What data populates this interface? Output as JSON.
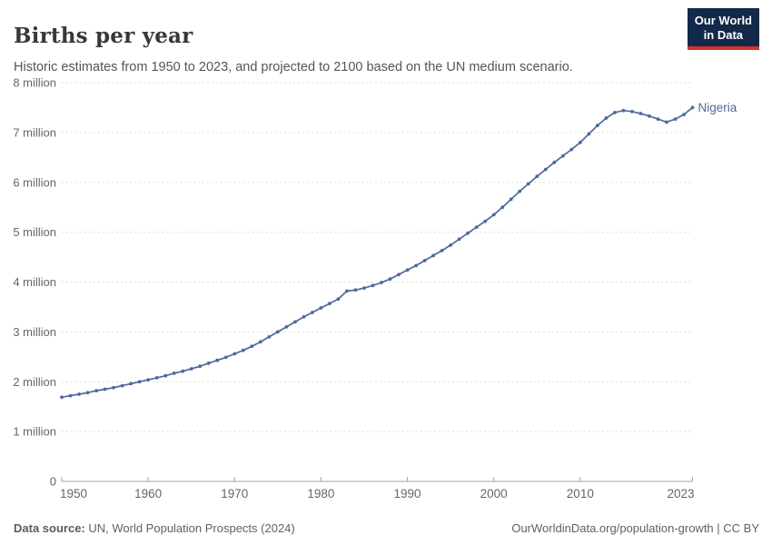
{
  "header": {
    "title": "Births per year",
    "subtitle": "Historic estimates from 1950 to 2023, and projected to 2100 based on the UN medium scenario."
  },
  "logo": {
    "line1": "Our World",
    "line2": "in Data",
    "bg_color": "#12294a",
    "accent_color": "#d0342c"
  },
  "footer": {
    "source_label": "Data source:",
    "source_text": " UN, World Population Prospects (2024)",
    "link_text": "OurWorldinData.org/population-growth | CC BY"
  },
  "colors": {
    "line": "#4c6a9c",
    "grid": "#dddddd",
    "axis": "#a5a5a5",
    "tick_text": "#666666",
    "title_text": "#383838",
    "subtitle_text": "#555555",
    "footer_text": "#616161"
  },
  "chart_data": {
    "type": "line",
    "title": "Births per year",
    "subtitle": "Historic estimates from 1950 to 2023, and projected to 2100 based on the UN medium scenario.",
    "unit": "births per year (millions)",
    "grid": "horizontal dashed",
    "legend_position": "end-of-line label",
    "xlim": [
      1950,
      2023
    ],
    "ylim": [
      0,
      8
    ],
    "x_ticks": [
      1950,
      1960,
      1970,
      1980,
      1990,
      2000,
      2010,
      2023
    ],
    "x_tick_labels": [
      "1950",
      "1960",
      "1970",
      "1980",
      "1990",
      "2000",
      "2010",
      "2023"
    ],
    "y_ticks": [
      0,
      1,
      2,
      3,
      4,
      5,
      6,
      7,
      8
    ],
    "y_tick_labels": [
      "0",
      "1 million",
      "2 million",
      "3 million",
      "4 million",
      "5 million",
      "6 million",
      "7 million",
      "8 million"
    ],
    "x_start_year": 1950,
    "series": [
      {
        "name": "Nigeria",
        "color": "#4c6a9c",
        "years": "1950-2023 annual",
        "values_millions": [
          1.69,
          1.72,
          1.75,
          1.78,
          1.82,
          1.85,
          1.88,
          1.92,
          1.96,
          2.0,
          2.04,
          2.08,
          2.12,
          2.17,
          2.21,
          2.26,
          2.31,
          2.37,
          2.43,
          2.49,
          2.56,
          2.63,
          2.71,
          2.8,
          2.9,
          3.0,
          3.1,
          3.2,
          3.3,
          3.39,
          3.48,
          3.57,
          3.66,
          3.82,
          3.84,
          3.88,
          3.93,
          3.99,
          4.06,
          4.15,
          4.24,
          4.33,
          4.43,
          4.53,
          4.63,
          4.74,
          4.86,
          4.98,
          5.1,
          5.22,
          5.35,
          5.5,
          5.66,
          5.82,
          5.97,
          6.12,
          6.26,
          6.4,
          6.53,
          6.66,
          6.8,
          6.97,
          7.14,
          7.29,
          7.4,
          7.44,
          7.42,
          7.38,
          7.33,
          7.27,
          7.21,
          7.27,
          7.36,
          7.5
        ]
      }
    ]
  }
}
